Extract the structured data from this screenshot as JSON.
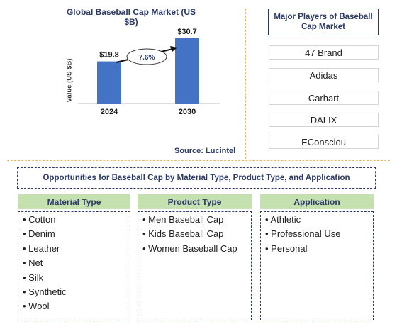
{
  "chart_data": {
    "type": "bar",
    "title": "Global Baseball Cap Market (US $B)",
    "ylabel": "Value (US $B)",
    "xlabel": "",
    "categories": [
      "2024",
      "2030"
    ],
    "values": [
      19.8,
      30.7
    ],
    "value_labels": [
      "$19.8",
      "$30.7"
    ],
    "ylim": [
      0,
      36
    ],
    "bar_color": "#4472c4",
    "annotation": {
      "text": "7.6%",
      "type": "CAGR arrow"
    },
    "grid": false,
    "source": "Source: Lucintel"
  },
  "players": {
    "title": "Major Players of Baseball Cap Market",
    "items": [
      "47 Brand",
      "Adidas",
      "Carhart",
      "DALIX",
      "EConsciou"
    ]
  },
  "opportunities": {
    "title": "Opportunities for Baseball Cap by Material Type, Product Type, and Application",
    "columns": [
      {
        "header": "Material Type",
        "items": [
          "Cotton",
          "Denim",
          "Leather",
          "Net",
          "Silk",
          "Synthetic",
          "Wool"
        ]
      },
      {
        "header": "Product Type",
        "items": [
          "Men Baseball Cap",
          "Kids Baseball Cap",
          "Women Baseball Cap"
        ]
      },
      {
        "header": "Application",
        "items": [
          "Athletic",
          "Professional Use",
          "Personal"
        ]
      }
    ]
  },
  "colors": {
    "accent": "#2b3a67",
    "header_green": "#c6e1b0",
    "divider": "#e7b96a"
  }
}
